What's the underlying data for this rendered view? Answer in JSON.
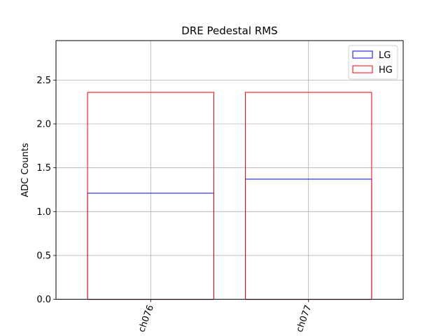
{
  "chart_data": {
    "type": "bar",
    "title": "DRE Pedestal RMS",
    "xlabel": "",
    "ylabel": "ADC Counts",
    "categories": [
      "ch076",
      "ch077"
    ],
    "series": [
      {
        "name": "LG",
        "values": [
          1.21,
          1.37
        ],
        "color": "#0000ff"
      },
      {
        "name": "HG",
        "values": [
          2.36,
          2.36
        ],
        "color": "#ff0000"
      }
    ],
    "ylim": [
      0,
      2.95
    ],
    "yticks": [
      "0.0",
      "0.5",
      "1.0",
      "1.5",
      "2.0",
      "2.5"
    ],
    "grid": true,
    "bar_style": "outline",
    "legend_position": "top-right",
    "xtick_rotation": "-70deg"
  }
}
